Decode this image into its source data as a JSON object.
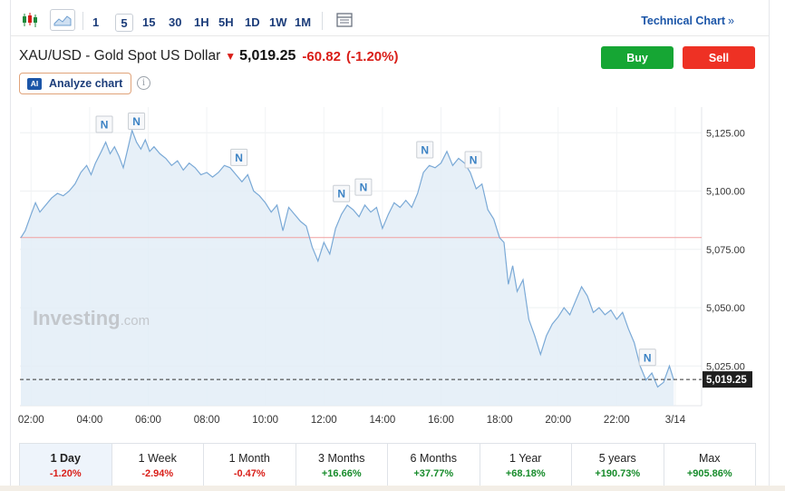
{
  "toolbar": {
    "chart_type_icons": [
      "candlestick-icon",
      "area-chart-icon"
    ],
    "timeframes": [
      "1",
      "5",
      "15",
      "30",
      "1H",
      "5H",
      "1D",
      "1W",
      "1M"
    ],
    "active_timeframe": "5",
    "settings_icon": "table-icon",
    "technical_link": "Technical Chart",
    "technical_chevron": "»"
  },
  "header": {
    "pair": "XAU/USD - Gold Spot US Dollar",
    "price": "5,019.25",
    "change": "-60.82",
    "change_pct": "(-1.20%)",
    "buy_label": "Buy",
    "sell_label": "Sell",
    "ai_badge": "AI",
    "analyze_label": "Analyze chart",
    "info_glyph": "i"
  },
  "colors": {
    "positive": "#168b2a",
    "negative": "#d91e18",
    "buy": "#16a634",
    "sell": "#ee3124",
    "line": "#7aa9d6",
    "area": "#e3edf7",
    "prev_close_line": "#f0a0a0"
  },
  "chart_data": {
    "type": "area",
    "watermark": "Investing",
    "watermark_suffix": ".com",
    "x_ticks": [
      "02:00",
      "04:00",
      "06:00",
      "08:00",
      "10:00",
      "12:00",
      "14:00",
      "16:00",
      "18:00",
      "20:00",
      "22:00",
      "3/14"
    ],
    "x_tick_hours": [
      2,
      4,
      6,
      8,
      10,
      12,
      14,
      16,
      18,
      20,
      22,
      24
    ],
    "y_ticks": [
      "5,125.00",
      "5,100.00",
      "5,075.00",
      "5,050.00",
      "5,025.00"
    ],
    "y_tick_values": [
      5125,
      5100,
      5075,
      5050,
      5025
    ],
    "ylim": [
      5008,
      5136
    ],
    "xlim": [
      1.62,
      24.9
    ],
    "last_price": 5019.25,
    "last_price_label": "5,019.25",
    "prev_close": 5080.07,
    "series": [
      {
        "points": [
          [
            1.65,
            5080
          ],
          [
            1.8,
            5083
          ],
          [
            2.0,
            5090
          ],
          [
            2.15,
            5095
          ],
          [
            2.3,
            5091
          ],
          [
            2.5,
            5094
          ],
          [
            2.7,
            5097
          ],
          [
            2.9,
            5099
          ],
          [
            3.1,
            5098
          ],
          [
            3.3,
            5100
          ],
          [
            3.5,
            5103
          ],
          [
            3.7,
            5108
          ],
          [
            3.9,
            5111
          ],
          [
            4.05,
            5107
          ],
          [
            4.2,
            5112
          ],
          [
            4.4,
            5117
          ],
          [
            4.55,
            5121
          ],
          [
            4.7,
            5116
          ],
          [
            4.85,
            5119
          ],
          [
            5.0,
            5115
          ],
          [
            5.15,
            5110
          ],
          [
            5.3,
            5118
          ],
          [
            5.45,
            5126
          ],
          [
            5.6,
            5121
          ],
          [
            5.75,
            5118
          ],
          [
            5.9,
            5122
          ],
          [
            6.05,
            5117
          ],
          [
            6.2,
            5119
          ],
          [
            6.4,
            5116
          ],
          [
            6.6,
            5114
          ],
          [
            6.8,
            5111
          ],
          [
            7.0,
            5113
          ],
          [
            7.2,
            5109
          ],
          [
            7.4,
            5112
          ],
          [
            7.6,
            5110
          ],
          [
            7.8,
            5107
          ],
          [
            8.0,
            5108
          ],
          [
            8.2,
            5106
          ],
          [
            8.4,
            5108
          ],
          [
            8.6,
            5111
          ],
          [
            8.8,
            5110
          ],
          [
            9.0,
            5107
          ],
          [
            9.2,
            5104
          ],
          [
            9.4,
            5107
          ],
          [
            9.6,
            5100
          ],
          [
            9.8,
            5098
          ],
          [
            10.0,
            5095
          ],
          [
            10.2,
            5091
          ],
          [
            10.4,
            5094
          ],
          [
            10.6,
            5083
          ],
          [
            10.8,
            5093
          ],
          [
            11.0,
            5090
          ],
          [
            11.2,
            5087
          ],
          [
            11.4,
            5085
          ],
          [
            11.6,
            5076
          ],
          [
            11.8,
            5070
          ],
          [
            12.0,
            5078
          ],
          [
            12.2,
            5073
          ],
          [
            12.4,
            5084
          ],
          [
            12.6,
            5090
          ],
          [
            12.8,
            5094
          ],
          [
            13.0,
            5092
          ],
          [
            13.2,
            5089
          ],
          [
            13.4,
            5094
          ],
          [
            13.6,
            5091
          ],
          [
            13.8,
            5093
          ],
          [
            14.0,
            5084
          ],
          [
            14.2,
            5090
          ],
          [
            14.4,
            5095
          ],
          [
            14.6,
            5093
          ],
          [
            14.8,
            5096
          ],
          [
            15.0,
            5093
          ],
          [
            15.2,
            5099
          ],
          [
            15.4,
            5108
          ],
          [
            15.6,
            5111
          ],
          [
            15.8,
            5110
          ],
          [
            16.0,
            5112
          ],
          [
            16.2,
            5117
          ],
          [
            16.4,
            5111
          ],
          [
            16.6,
            5114
          ],
          [
            16.8,
            5112
          ],
          [
            17.0,
            5108
          ],
          [
            17.2,
            5101
          ],
          [
            17.4,
            5103
          ],
          [
            17.6,
            5092
          ],
          [
            17.8,
            5088
          ],
          [
            18.0,
            5080
          ],
          [
            18.15,
            5078
          ],
          [
            18.3,
            5060
          ],
          [
            18.45,
            5068
          ],
          [
            18.6,
            5057
          ],
          [
            18.8,
            5062
          ],
          [
            19.0,
            5045
          ],
          [
            19.2,
            5038
          ],
          [
            19.4,
            5030
          ],
          [
            19.6,
            5038
          ],
          [
            19.8,
            5043
          ],
          [
            20.0,
            5046
          ],
          [
            20.2,
            5050
          ],
          [
            20.4,
            5047
          ],
          [
            20.6,
            5053
          ],
          [
            20.8,
            5059
          ],
          [
            21.0,
            5055
          ],
          [
            21.2,
            5048
          ],
          [
            21.4,
            5050
          ],
          [
            21.6,
            5047
          ],
          [
            21.8,
            5049
          ],
          [
            22.0,
            5045
          ],
          [
            22.2,
            5048
          ],
          [
            22.4,
            5041
          ],
          [
            22.6,
            5035
          ],
          [
            22.8,
            5025
          ],
          [
            23.0,
            5019
          ],
          [
            23.2,
            5022
          ],
          [
            23.4,
            5016
          ],
          [
            23.6,
            5018
          ],
          [
            23.8,
            5025
          ],
          [
            23.95,
            5019
          ]
        ]
      }
    ],
    "news_markers": [
      {
        "label": "N",
        "hour": 4.5
      },
      {
        "label": "N",
        "hour": 5.6
      },
      {
        "label": "N",
        "hour": 9.1
      },
      {
        "label": "N",
        "hour": 12.6
      },
      {
        "label": "N",
        "hour": 13.35
      },
      {
        "label": "N",
        "hour": 15.45
      },
      {
        "label": "N",
        "hour": 17.1
      },
      {
        "label": "N",
        "hour": 23.05
      }
    ]
  },
  "periods": [
    {
      "label": "1 Day",
      "value": "-1.20%",
      "sign": "neg",
      "active": true
    },
    {
      "label": "1 Week",
      "value": "-2.94%",
      "sign": "neg"
    },
    {
      "label": "1 Month",
      "value": "-0.47%",
      "sign": "neg"
    },
    {
      "label": "3 Months",
      "value": "+16.66%",
      "sign": "pos"
    },
    {
      "label": "6 Months",
      "value": "+37.77%",
      "sign": "pos"
    },
    {
      "label": "1 Year",
      "value": "+68.18%",
      "sign": "pos"
    },
    {
      "label": "5 years",
      "value": "+190.73%",
      "sign": "pos"
    },
    {
      "label": "Max",
      "value": "+905.86%",
      "sign": "pos"
    }
  ]
}
